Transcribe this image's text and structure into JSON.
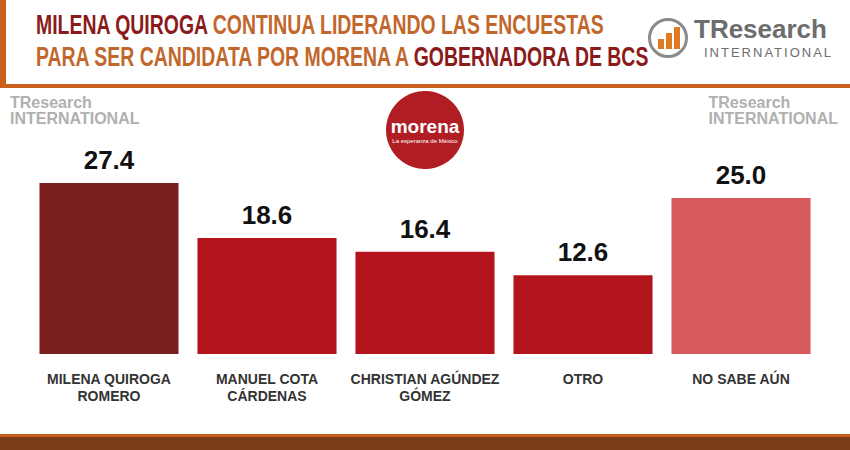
{
  "chart_data": {
    "type": "bar",
    "title": [
      "MILENA QUIROGA CONTINUA LIDERANDO LAS ENCUESTAS",
      "PARA SER CANDIDATA POR MORENA A GOBERNADORA DE BCS"
    ],
    "title_highlights": [
      "MILENA QUIROGA",
      "GOBERNADORA DE BCS"
    ],
    "source_logo": {
      "name": "TResearch",
      "sub": "INTERNATIONAL"
    },
    "party_logo": {
      "name": "morena",
      "sub": "La esperanza de México"
    },
    "categories": [
      "MILENA QUIROGA ROMERO",
      "MANUEL COTA CÁRDENAS",
      "CHRISTIAN AGÚNDEZ GÓMEZ",
      "OTRO",
      "NO SABE AÚN"
    ],
    "values": [
      27.4,
      18.6,
      16.4,
      12.6,
      25.0
    ],
    "value_labels": [
      "27.4",
      "18.6",
      "16.4",
      "12.6",
      "25.0"
    ],
    "colors": [
      "#7b1e1e",
      "#b3141c",
      "#b3141c",
      "#b3141c",
      "#d65a5c"
    ],
    "data_labels": true,
    "tick_labels": "x",
    "grid": false
  }
}
